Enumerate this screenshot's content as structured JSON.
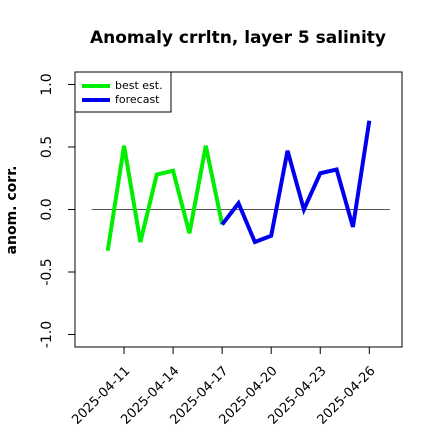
{
  "chart_data": {
    "type": "line",
    "title": "Anomaly crrltn, layer 5 salinity",
    "ylabel": "anom. corr.",
    "x": [
      "2025-04-10",
      "2025-04-11",
      "2025-04-12",
      "2025-04-13",
      "2025-04-14",
      "2025-04-15",
      "2025-04-16",
      "2025-04-17",
      "2025-04-18",
      "2025-04-19",
      "2025-04-20",
      "2025-04-21",
      "2025-04-22",
      "2025-04-23",
      "2025-04-24",
      "2025-04-25",
      "2025-04-26"
    ],
    "series": [
      {
        "name": "best est.",
        "color": "#00ee00",
        "values": [
          -0.33,
          0.51,
          -0.26,
          0.28,
          0.31,
          -0.19,
          0.51,
          -0.12,
          null,
          null,
          null,
          null,
          null,
          null,
          null,
          null,
          null
        ]
      },
      {
        "name": "forecast",
        "color": "#0000ee",
        "values": [
          null,
          null,
          null,
          null,
          null,
          null,
          null,
          -0.12,
          0.05,
          -0.26,
          -0.21,
          0.47,
          0.0,
          0.29,
          0.32,
          -0.14,
          0.71
        ]
      }
    ],
    "xlim": [
      "2025-04-08",
      "2025-04-28"
    ],
    "xticks": [
      "2025-04-11",
      "2025-04-14",
      "2025-04-17",
      "2025-04-20",
      "2025-04-23",
      "2025-04-26"
    ],
    "highlight_xtick": "2025-04-17",
    "highlight_color": "#228b22",
    "ylim": [
      -1.1,
      1.1
    ],
    "yticks": [
      {
        "value": -1,
        "label": "-1.0"
      },
      {
        "value": -0.5,
        "label": "-0.5"
      },
      {
        "value": 0,
        "label": "0.0"
      },
      {
        "value": 0.5,
        "label": "0.5"
      },
      {
        "value": 1,
        "label": "1.0"
      }
    ],
    "hline": 0,
    "legend": "topleft"
  }
}
